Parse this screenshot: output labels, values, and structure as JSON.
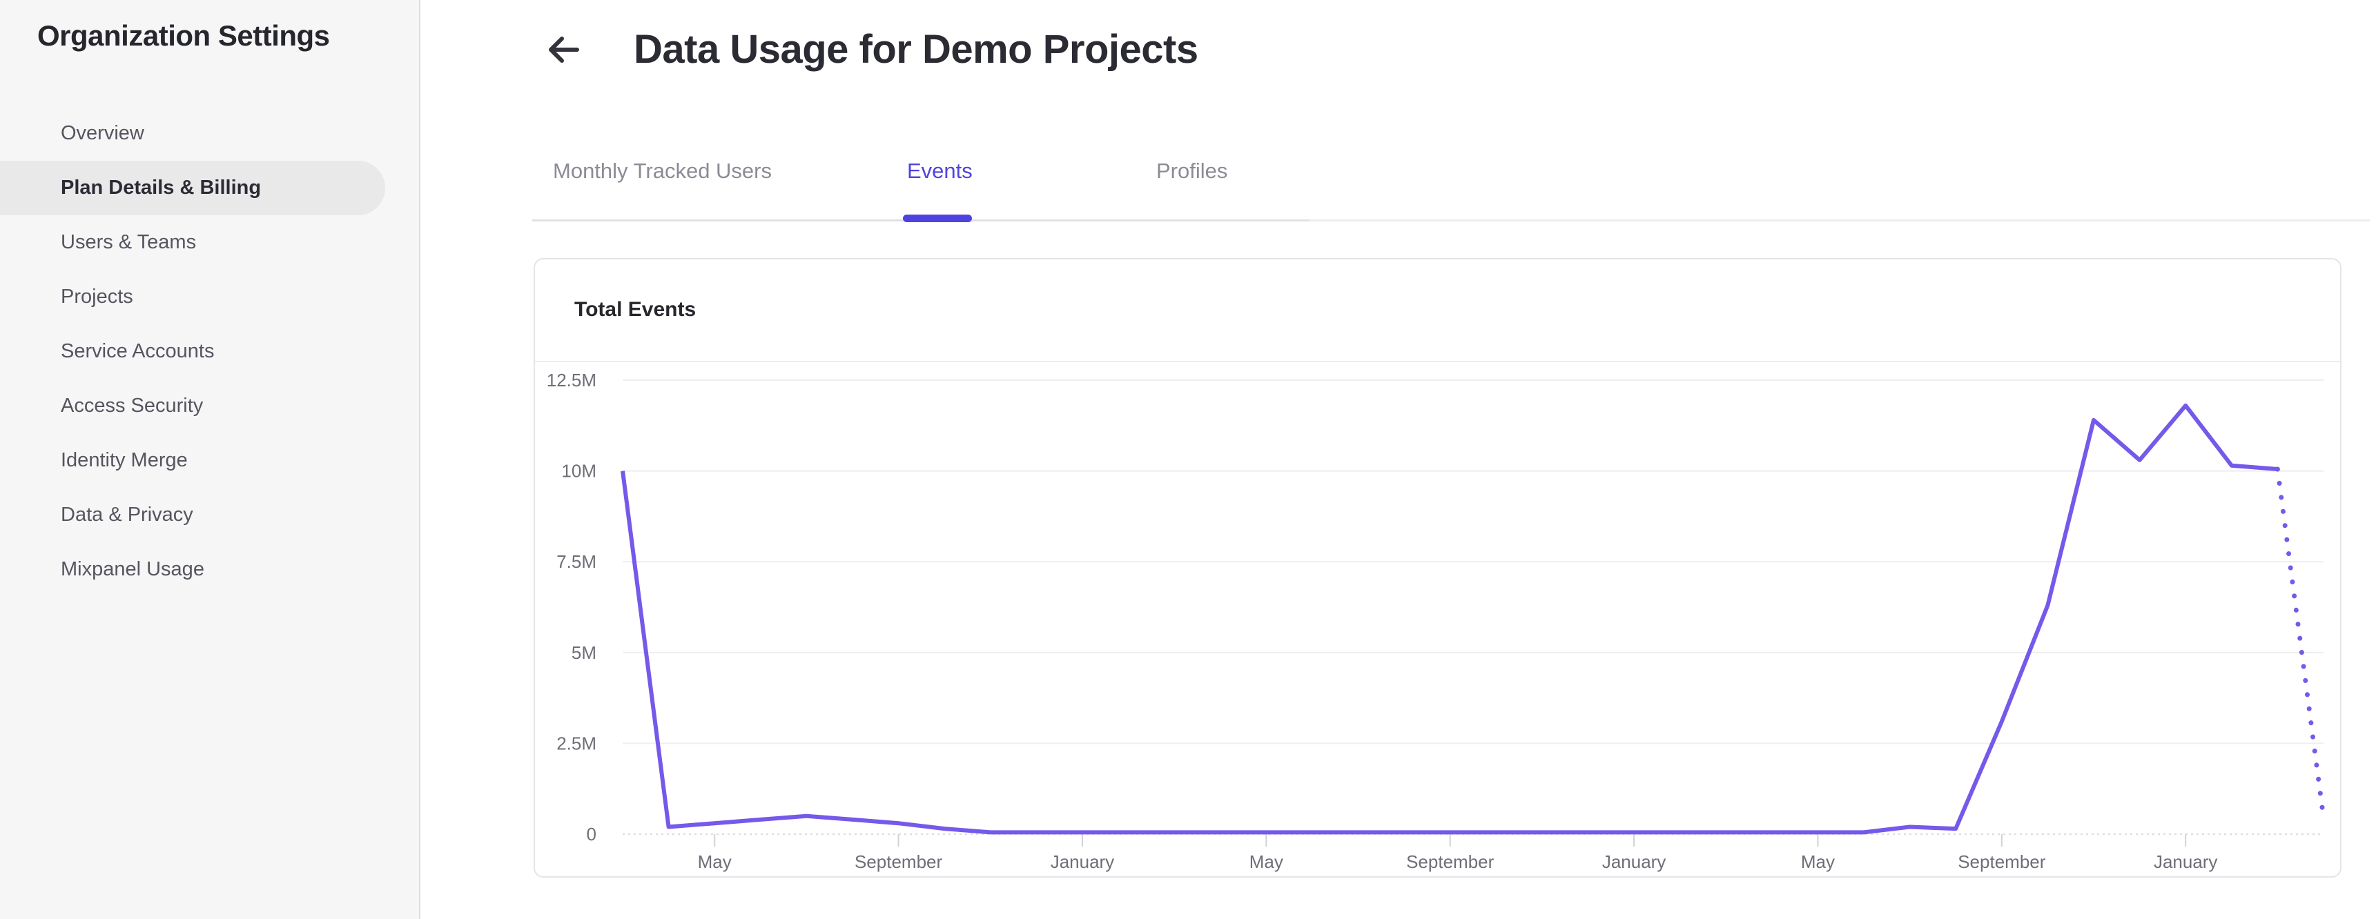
{
  "sidebar": {
    "title": "Organization Settings",
    "items": [
      {
        "label": "Overview",
        "active": false
      },
      {
        "label": "Plan Details & Billing",
        "active": true
      },
      {
        "label": "Users & Teams",
        "active": false
      },
      {
        "label": "Projects",
        "active": false
      },
      {
        "label": "Service Accounts",
        "active": false
      },
      {
        "label": "Access Security",
        "active": false
      },
      {
        "label": "Identity Merge",
        "active": false
      },
      {
        "label": "Data & Privacy",
        "active": false
      },
      {
        "label": "Mixpanel Usage",
        "active": false
      }
    ]
  },
  "header": {
    "title": "Data Usage for Demo Projects",
    "back_icon": "arrow-left-icon"
  },
  "tabs": [
    {
      "label": "Monthly Tracked Users",
      "active": false
    },
    {
      "label": "Events",
      "active": true
    },
    {
      "label": "Profiles",
      "active": false
    }
  ],
  "card": {
    "title": "Total Events"
  },
  "colors": {
    "accent_purple": "#4f43df",
    "line_purple": "#7559ea",
    "sidebar_bg": "#f6f6f7",
    "active_pill_bg": "#e9e9ea",
    "axis_label_gray": "#6e6e78",
    "inactive_tab_gray": "#8b8b95"
  },
  "chart_data": {
    "type": "line",
    "title": "Total Events",
    "ylabel": "",
    "xlabel": "",
    "ylim_millions": [
      0,
      12.5
    ],
    "grid": "horizontal",
    "legend_position": "none",
    "y_gridlines_millions": [
      0,
      2.5,
      5,
      7.5,
      10,
      12.5
    ],
    "y_tick_labels": [
      "0",
      "2.5M",
      "5M",
      "7.5M",
      "10M",
      "12.5M"
    ],
    "x_tick_labels": [
      "May",
      "September",
      "January",
      "May",
      "September",
      "January",
      "May",
      "September",
      "January"
    ],
    "x_tick_month_index": [
      2,
      6,
      10,
      14,
      18,
      22,
      26,
      30,
      34
    ],
    "series": [
      {
        "name": "Total Events",
        "style": "solid",
        "start_month_index": 0,
        "values_millions": [
          10,
          0.2,
          0.3,
          0.4,
          0.5,
          0.4,
          0.3,
          0.15,
          0.05,
          0.05,
          0.05,
          0.05,
          0.05,
          0.05,
          0.05,
          0.05,
          0.05,
          0.05,
          0.05,
          0.05,
          0.05,
          0.05,
          0.05,
          0.05,
          0.05,
          0.05,
          0.05,
          0.05,
          0.2,
          0.15,
          3.1,
          6.3,
          11.4,
          10.3,
          11.8,
          10.15,
          10.05
        ]
      },
      {
        "name": "Total Events (projected)",
        "style": "dotted",
        "start_month_index": 36,
        "values_millions": [
          10.05,
          0.45
        ]
      }
    ]
  }
}
